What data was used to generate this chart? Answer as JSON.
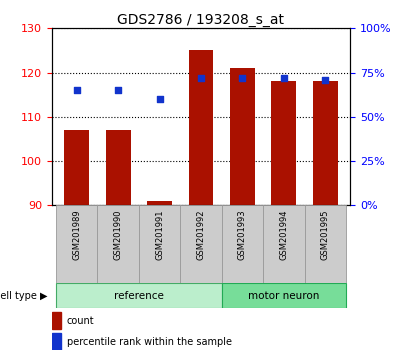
{
  "title": "GDS2786 / 193208_s_at",
  "samples": [
    "GSM201989",
    "GSM201990",
    "GSM201991",
    "GSM201992",
    "GSM201993",
    "GSM201994",
    "GSM201995"
  ],
  "counts": [
    107,
    107,
    91,
    125,
    121,
    118,
    118
  ],
  "percentiles": [
    65,
    65,
    60,
    72,
    72,
    72,
    71
  ],
  "ylim_left": [
    90,
    130
  ],
  "ylim_right": [
    0,
    100
  ],
  "yticks_left": [
    90,
    100,
    110,
    120,
    130
  ],
  "yticks_right": [
    0,
    25,
    50,
    75,
    100
  ],
  "ytick_labels_right": [
    "0%",
    "25%",
    "50%",
    "75%",
    "100%"
  ],
  "bar_color": "#aa1100",
  "dot_color": "#1133cc",
  "group_ref_label": "reference",
  "group_motor_label": "motor neuron",
  "group_ref_color": "#bbeecc",
  "group_motor_color": "#77dd99",
  "cell_type_label": "cell type",
  "legend_count": "count",
  "legend_percentile": "percentile rank within the sample",
  "n_ref": 4,
  "n_motor": 3
}
